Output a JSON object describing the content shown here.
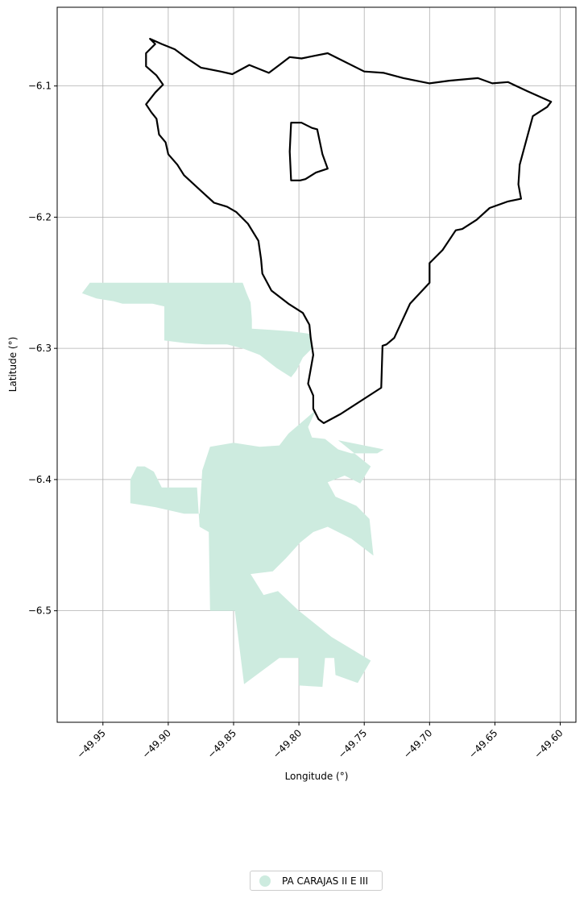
{
  "chart_data": {
    "type": "map",
    "xlabel": "Longitude (°)",
    "ylabel": "Latitude (°)",
    "xlim": [
      -49.985,
      -49.588
    ],
    "ylim": [
      -6.585,
      -6.04
    ],
    "grid": true,
    "x_ticks": [
      -49.95,
      -49.9,
      -49.85,
      -49.8,
      -49.75,
      -49.7,
      -49.65,
      -49.6
    ],
    "x_tick_labels": [
      "−49.95",
      "−49.90",
      "−49.85",
      "−49.80",
      "−49.75",
      "−49.70",
      "−49.65",
      "−49.60"
    ],
    "y_ticks": [
      -6.1,
      -6.2,
      -6.3,
      -6.4,
      -6.5
    ],
    "y_tick_labels": [
      "−6.1",
      "−6.2",
      "−6.3",
      "−6.4",
      "−6.5"
    ],
    "legend_placement": "bottom-center",
    "outline": {
      "color": "#000000",
      "outer_ring": [
        [
          -49.914,
          -6.064
        ],
        [
          -49.905,
          -6.068
        ],
        [
          -49.895,
          -6.072
        ],
        [
          -49.887,
          -6.078
        ],
        [
          -49.875,
          -6.086
        ],
        [
          -49.86,
          -6.089
        ],
        [
          -49.851,
          -6.091
        ],
        [
          -49.838,
          -6.084
        ],
        [
          -49.823,
          -6.09
        ],
        [
          -49.815,
          -6.084
        ],
        [
          -49.807,
          -6.078
        ],
        [
          -49.798,
          -6.079
        ],
        [
          -49.788,
          -6.077
        ],
        [
          -49.778,
          -6.075
        ],
        [
          -49.77,
          -6.079
        ],
        [
          -49.75,
          -6.089
        ],
        [
          -49.735,
          -6.09
        ],
        [
          -49.72,
          -6.094
        ],
        [
          -49.7,
          -6.098
        ],
        [
          -49.685,
          -6.096
        ],
        [
          -49.663,
          -6.094
        ],
        [
          -49.652,
          -6.098
        ],
        [
          -49.64,
          -6.097
        ],
        [
          -49.625,
          -6.104
        ],
        [
          -49.607,
          -6.112
        ],
        [
          -49.61,
          -6.116
        ],
        [
          -49.621,
          -6.123
        ],
        [
          -49.631,
          -6.16
        ],
        [
          -49.632,
          -6.175
        ],
        [
          -49.63,
          -6.186
        ],
        [
          -49.64,
          -6.188
        ],
        [
          -49.654,
          -6.193
        ],
        [
          -49.664,
          -6.202
        ],
        [
          -49.675,
          -6.209
        ],
        [
          -49.68,
          -6.21
        ],
        [
          -49.69,
          -6.225
        ],
        [
          -49.7,
          -6.235
        ],
        [
          -49.7,
          -6.25
        ],
        [
          -49.715,
          -6.266
        ],
        [
          -49.727,
          -6.292
        ],
        [
          -49.733,
          -6.297
        ],
        [
          -49.736,
          -6.298
        ],
        [
          -49.737,
          -6.33
        ],
        [
          -49.768,
          -6.35
        ],
        [
          -49.781,
          -6.357
        ],
        [
          -49.785,
          -6.354
        ],
        [
          -49.789,
          -6.346
        ],
        [
          -49.789,
          -6.336
        ],
        [
          -49.793,
          -6.327
        ],
        [
          -49.791,
          -6.316
        ],
        [
          -49.789,
          -6.305
        ],
        [
          -49.791,
          -6.292
        ],
        [
          -49.792,
          -6.282
        ],
        [
          -49.797,
          -6.273
        ],
        [
          -49.808,
          -6.266
        ],
        [
          -49.821,
          -6.256
        ],
        [
          -49.828,
          -6.243
        ],
        [
          -49.829,
          -6.232
        ],
        [
          -49.831,
          -6.218
        ],
        [
          -49.839,
          -6.205
        ],
        [
          -49.848,
          -6.196
        ],
        [
          -49.855,
          -6.192
        ],
        [
          -49.865,
          -6.189
        ],
        [
          -49.876,
          -6.179
        ],
        [
          -49.888,
          -6.168
        ],
        [
          -49.893,
          -6.16
        ],
        [
          -49.9,
          -6.152
        ],
        [
          -49.902,
          -6.143
        ],
        [
          -49.907,
          -6.137
        ],
        [
          -49.909,
          -6.125
        ],
        [
          -49.913,
          -6.12
        ],
        [
          -49.917,
          -6.114
        ],
        [
          -49.91,
          -6.105
        ],
        [
          -49.904,
          -6.099
        ],
        [
          -49.909,
          -6.092
        ],
        [
          -49.917,
          -6.085
        ],
        [
          -49.917,
          -6.075
        ],
        [
          -49.91,
          -6.068
        ],
        [
          -49.914,
          -6.064
        ]
      ],
      "inner_ring": [
        [
          -49.806,
          -6.128
        ],
        [
          -49.798,
          -6.128
        ],
        [
          -49.79,
          -6.132
        ],
        [
          -49.786,
          -6.133
        ],
        [
          -49.782,
          -6.152
        ],
        [
          -49.778,
          -6.163
        ],
        [
          -49.787,
          -6.166
        ],
        [
          -49.795,
          -6.171
        ],
        [
          -49.799,
          -6.172
        ],
        [
          -49.806,
          -6.172
        ],
        [
          -49.807,
          -6.15
        ],
        [
          -49.806,
          -6.128
        ]
      ]
    },
    "series": [
      {
        "name": "PA CARAJAS II E III",
        "color": "#cdebdf",
        "polygons": [
          [
            [
              -49.966,
              -6.258
            ],
            [
              -49.96,
              -6.25
            ],
            [
              -49.935,
              -6.25
            ],
            [
              -49.92,
              -6.25
            ],
            [
              -49.878,
              -6.25
            ],
            [
              -49.86,
              -6.25
            ],
            [
              -49.843,
              -6.25
            ],
            [
              -49.84,
              -6.258
            ],
            [
              -49.837,
              -6.265
            ],
            [
              -49.836,
              -6.278
            ],
            [
              -49.836,
              -6.285
            ],
            [
              -49.82,
              -6.286
            ],
            [
              -49.806,
              -6.287
            ],
            [
              -49.791,
              -6.289
            ],
            [
              -49.79,
              -6.3
            ],
            [
              -49.797,
              -6.307
            ],
            [
              -49.802,
              -6.317
            ],
            [
              -49.806,
              -6.322
            ],
            [
              -49.817,
              -6.315
            ],
            [
              -49.83,
              -6.305
            ],
            [
              -49.843,
              -6.3
            ],
            [
              -49.855,
              -6.297
            ],
            [
              -49.871,
              -6.297
            ],
            [
              -49.887,
              -6.296
            ],
            [
              -49.903,
              -6.294
            ],
            [
              -49.903,
              -6.268
            ],
            [
              -49.912,
              -6.266
            ],
            [
              -49.935,
              -6.266
            ],
            [
              -49.942,
              -6.264
            ],
            [
              -49.955,
              -6.262
            ],
            [
              -49.966,
              -6.258
            ]
          ],
          [
            [
              -49.787,
              -6.347
            ],
            [
              -49.793,
              -6.36
            ],
            [
              -49.79,
              -6.368
            ],
            [
              -49.78,
              -6.369
            ],
            [
              -49.77,
              -6.377
            ],
            [
              -49.76,
              -6.38
            ],
            [
              -49.74,
              -6.38
            ],
            [
              -49.735,
              -6.377
            ],
            [
              -49.77,
              -6.37
            ],
            [
              -49.745,
              -6.39
            ],
            [
              -49.753,
              -6.403
            ],
            [
              -49.765,
              -6.397
            ],
            [
              -49.778,
              -6.402
            ],
            [
              -49.772,
              -6.413
            ],
            [
              -49.756,
              -6.42
            ],
            [
              -49.746,
              -6.43
            ],
            [
              -49.743,
              -6.458
            ],
            [
              -49.76,
              -6.445
            ],
            [
              -49.778,
              -6.436
            ],
            [
              -49.789,
              -6.44
            ],
            [
              -49.799,
              -6.448
            ],
            [
              -49.81,
              -6.46
            ],
            [
              -49.82,
              -6.47
            ],
            [
              -49.837,
              -6.472
            ],
            [
              -49.827,
              -6.488
            ],
            [
              -49.816,
              -6.485
            ],
            [
              -49.8,
              -6.5
            ],
            [
              -49.775,
              -6.52
            ],
            [
              -49.745,
              -6.538
            ],
            [
              -49.755,
              -6.555
            ],
            [
              -49.772,
              -6.549
            ],
            [
              -49.773,
              -6.536
            ],
            [
              -49.78,
              -6.536
            ],
            [
              -49.782,
              -6.558
            ],
            [
              -49.8,
              -6.557
            ],
            [
              -49.8,
              -6.536
            ],
            [
              -49.815,
              -6.536
            ],
            [
              -49.842,
              -6.556
            ],
            [
              -49.849,
              -6.5
            ],
            [
              -49.868,
              -6.5
            ],
            [
              -49.869,
              -6.44
            ],
            [
              -49.876,
              -6.436
            ],
            [
              -49.878,
              -6.406
            ],
            [
              -49.888,
              -6.406
            ],
            [
              -49.905,
              -6.406
            ],
            [
              -49.911,
              -6.394
            ],
            [
              -49.918,
              -6.39
            ],
            [
              -49.924,
              -6.39
            ],
            [
              -49.929,
              -6.4
            ],
            [
              -49.929,
              -6.418
            ],
            [
              -49.91,
              -6.421
            ],
            [
              -49.888,
              -6.426
            ],
            [
              -49.876,
              -6.426
            ],
            [
              -49.874,
              -6.393
            ],
            [
              -49.868,
              -6.375
            ],
            [
              -49.85,
              -6.372
            ],
            [
              -49.83,
              -6.375
            ],
            [
              -49.815,
              -6.374
            ],
            [
              -49.808,
              -6.365
            ],
            [
              -49.787,
              -6.347
            ]
          ]
        ]
      }
    ]
  }
}
